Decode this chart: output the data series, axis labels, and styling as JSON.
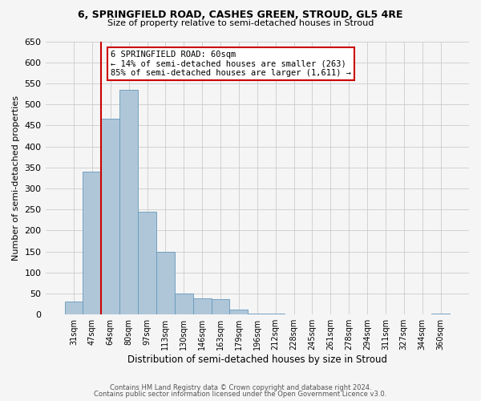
{
  "title_line1": "6, SPRINGFIELD ROAD, CASHES GREEN, STROUD, GL5 4RE",
  "title_line2": "Size of property relative to semi-detached houses in Stroud",
  "xlabel": "Distribution of semi-detached houses by size in Stroud",
  "ylabel": "Number of semi-detached properties",
  "categories": [
    "31sqm",
    "47sqm",
    "64sqm",
    "80sqm",
    "97sqm",
    "113sqm",
    "130sqm",
    "146sqm",
    "163sqm",
    "179sqm",
    "196sqm",
    "212sqm",
    "228sqm",
    "245sqm",
    "261sqm",
    "278sqm",
    "294sqm",
    "311sqm",
    "327sqm",
    "344sqm",
    "360sqm"
  ],
  "values": [
    30,
    340,
    465,
    535,
    245,
    150,
    50,
    38,
    37,
    12,
    2,
    2,
    0,
    0,
    0,
    1,
    0,
    0,
    0,
    0,
    3
  ],
  "bar_color": "#aec6d8",
  "bar_edge_color": "#6699bb",
  "bar_width": 1.0,
  "vline_color": "#cc0000",
  "vline_x_index": 1.5,
  "annotation_box_text": "6 SPRINGFIELD ROAD: 60sqm\n← 14% of semi-detached houses are smaller (263)\n85% of semi-detached houses are larger (1,611) →",
  "ylim": [
    0,
    650
  ],
  "yticks": [
    0,
    50,
    100,
    150,
    200,
    250,
    300,
    350,
    400,
    450,
    500,
    550,
    600,
    650
  ],
  "footer_line1": "Contains HM Land Registry data © Crown copyright and database right 2024.",
  "footer_line2": "Contains public sector information licensed under the Open Government Licence v3.0.",
  "bg_color": "#f5f5f5",
  "grid_color": "#cccccc"
}
